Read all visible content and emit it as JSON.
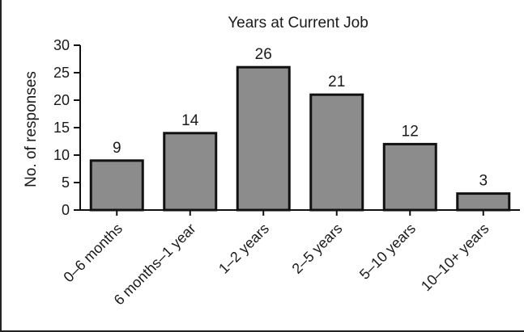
{
  "chart_data": {
    "type": "bar",
    "title": "Years at Current Job",
    "xlabel": "",
    "ylabel": "No. of responses",
    "categories": [
      "0–6 months",
      "6 months–1 year",
      "1–2 years",
      "2–5 years",
      "5–10 years",
      "10–10+ years"
    ],
    "values": [
      9,
      14,
      26,
      21,
      12,
      3
    ],
    "ylim": [
      0,
      30
    ],
    "yticks": [
      0,
      5,
      10,
      15,
      20,
      25,
      30
    ],
    "grid": false,
    "legend": "none",
    "colors": {
      "bar_fill": "#8c8c8c",
      "bar_edge": "#111111",
      "axis": "#111111"
    }
  }
}
